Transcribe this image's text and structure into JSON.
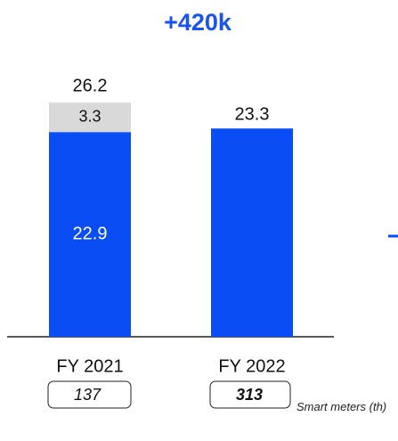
{
  "chart_data": {
    "type": "stacked_bar",
    "title": "+420k",
    "categories": [
      "FY 2021",
      "FY 2022"
    ],
    "series": [
      {
        "color": "#0a4df5",
        "values": [
          22.9,
          23.3
        ]
      },
      {
        "color": "#d9d9d9",
        "values": [
          3.3,
          null
        ]
      }
    ],
    "totals": [
      26.2,
      null
    ],
    "ylim": [
      0,
      30
    ],
    "footnote": {
      "values": [
        137,
        313
      ],
      "label": "Smart meters (th)"
    }
  }
}
